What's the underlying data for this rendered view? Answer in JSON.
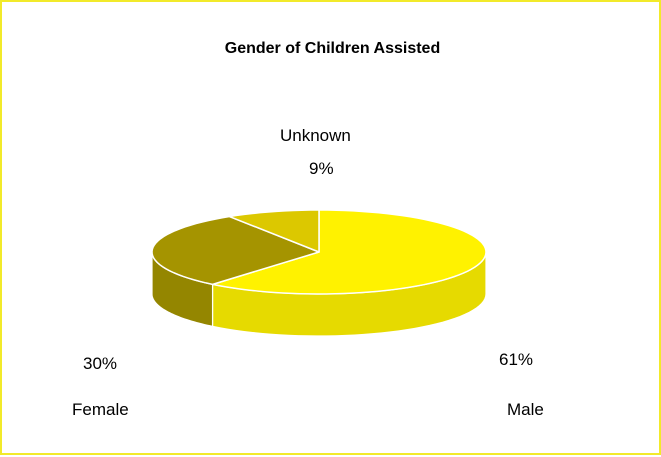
{
  "chart_data": {
    "type": "pie",
    "title": "Gender of Children Assisted",
    "slices": [
      {
        "label": "Male",
        "percent_label": "61%",
        "value": 61,
        "color": "#fff200"
      },
      {
        "label": "Female",
        "percent_label": "30%",
        "value": 30,
        "color": "#a59400"
      },
      {
        "label": "Unknown",
        "percent_label": "9%",
        "value": 9,
        "color": "#dcc800"
      }
    ],
    "three_d": true,
    "legend": "none"
  },
  "colors": {
    "border": "#f2ea2a",
    "male_side": "#e6da00",
    "female_side": "#948600",
    "unknown_side": "#bfae00"
  }
}
